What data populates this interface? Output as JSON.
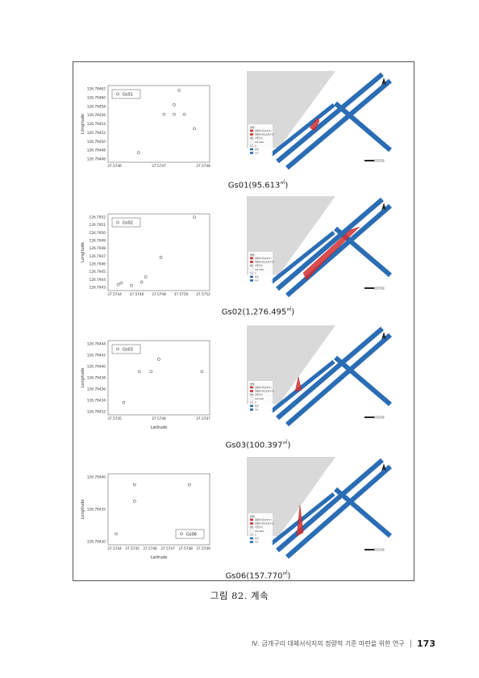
{
  "figures": [
    {
      "caption_main": "Gs01(95.613",
      "caption_unit": "㎡",
      "caption_tail": ")",
      "legend": "Gs01",
      "ylabel": "Longitude",
      "xlabel": "",
      "xticks": [
        "37.5746",
        "37.5747",
        "37.5748"
      ],
      "yticks": [
        "126.79462",
        "126.79460",
        "126.79458",
        "126.79456",
        "126.79454",
        "126.79452",
        "126.79450",
        "126.79448",
        "126.79446"
      ]
    },
    {
      "caption_main": "Gs02(1,276.495",
      "caption_unit": "㎡",
      "caption_tail": ")",
      "legend": "Gs02",
      "ylabel": "Longitude",
      "xlabel": "",
      "xticks": [
        "37.5744",
        "37.5746",
        "37.5748",
        "37.5750",
        "37.5752"
      ],
      "yticks": [
        "126.7952",
        "126.7951",
        "126.7950",
        "126.7949",
        "126.7948",
        "126.7947",
        "126.7946",
        "126.7945",
        "126.7944",
        "126.7943"
      ]
    },
    {
      "caption_main": "Gs03(100.397",
      "caption_unit": "㎡",
      "caption_tail": ")",
      "legend": "Gs03",
      "ylabel": "Longitude",
      "xlabel": "Latitude",
      "xticks": [
        "37.5745",
        "37.5746",
        "37.5747"
      ],
      "yticks": [
        "126.79444",
        "126.79442",
        "126.79440",
        "126.79438",
        "126.79436",
        "126.79434",
        "126.79432"
      ]
    },
    {
      "caption_main": "Gs06(157.770",
      "caption_unit": "㎡",
      "caption_tail": ")",
      "legend": "Gs06",
      "ylabel": "Longitude",
      "xlabel": "Latitude",
      "xticks": [
        "37.5744",
        "37.5745",
        "37.5746",
        "37.5747",
        "37.5748",
        "37.5749"
      ],
      "yticks": [
        "126.79440",
        "126.79435",
        "126.79430"
      ]
    }
  ],
  "chart_data": [
    {
      "type": "scatter",
      "title": "",
      "xlabel": "",
      "ylabel": "Longitude",
      "legend": "Gs01",
      "xlim": [
        37.5746,
        37.5748
      ],
      "ylim": [
        126.79446,
        126.79462
      ],
      "points": [
        [
          37.57466,
          126.79448
        ],
        [
          37.57471,
          126.79456
        ],
        [
          37.57473,
          126.79456
        ],
        [
          37.57473,
          126.79458
        ],
        [
          37.57474,
          126.79461
        ],
        [
          37.57475,
          126.79456
        ],
        [
          37.57477,
          126.79453
        ]
      ]
    },
    {
      "type": "scatter",
      "title": "",
      "xlabel": "",
      "ylabel": "Longitude",
      "legend": "Gs02",
      "xlim": [
        37.5743,
        37.5753
      ],
      "ylim": [
        126.7943,
        126.7952
      ],
      "points": [
        [
          37.5744,
          126.79437
        ],
        [
          37.57443,
          126.79439
        ],
        [
          37.57453,
          126.79436
        ],
        [
          37.57463,
          126.7944
        ],
        [
          37.57467,
          126.79446
        ],
        [
          37.57482,
          126.79469
        ],
        [
          37.57515,
          126.79516
        ]
      ]
    },
    {
      "type": "scatter",
      "title": "",
      "xlabel": "Latitude",
      "ylabel": "Longitude",
      "legend": "Gs03",
      "xlim": [
        37.57447,
        37.57473
      ],
      "ylim": [
        126.79432,
        126.79444
      ],
      "points": [
        [
          37.57451,
          126.79434
        ],
        [
          37.57455,
          126.79439
        ],
        [
          37.57458,
          126.79439
        ],
        [
          37.5746,
          126.79441
        ],
        [
          37.57471,
          126.79439
        ]
      ]
    },
    {
      "type": "scatter",
      "title": "",
      "xlabel": "Latitude",
      "ylabel": "Longitude",
      "legend": "Gs06",
      "xlim": [
        37.5744,
        37.5749
      ],
      "ylim": [
        126.79428,
        126.79441
      ],
      "points": [
        [
          37.57444,
          126.7943
        ],
        [
          37.57453,
          126.79436
        ],
        [
          37.57453,
          126.79439
        ],
        [
          37.5748,
          126.79439
        ]
      ]
    }
  ],
  "map_legend": {
    "title": "범례",
    "items": [
      "대체서식지(2017)",
      "대체서식지(금개구리)",
      "기존습지",
      "GiS data",
      "논",
      "하천",
      "수로"
    ]
  },
  "colors": {
    "water": "#2a6db5",
    "habitat": "#d62f2f",
    "land": "#d9d9d9"
  },
  "figure_caption": "그림 82. 계속",
  "footer": {
    "text": "Ⅳ. 금개구리 대체서식지의 정량적 기준 마련을 위한 연구",
    "separator": "|",
    "page": "173"
  }
}
